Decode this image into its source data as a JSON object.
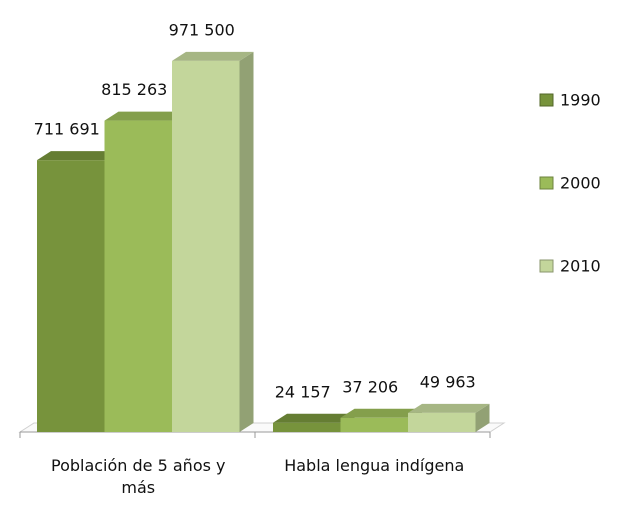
{
  "chart_data": {
    "type": "bar3d",
    "categories": [
      "Población de 5 años y más",
      "Habla lengua indígena"
    ],
    "series": [
      {
        "name": "1990",
        "color": "#77933c",
        "values": [
          711691,
          24157
        ],
        "value_labels": [
          "711 691",
          "24 157"
        ]
      },
      {
        "name": "2000",
        "color": "#9bbb59",
        "values": [
          815263,
          37206
        ],
        "value_labels": [
          "815 263",
          "37 206"
        ]
      },
      {
        "name": "2010",
        "color": "#c3d69b",
        "values": [
          971500,
          49963
        ],
        "value_labels": [
          "971 500",
          "49 963"
        ]
      }
    ],
    "ylim": [
      0,
      1000000
    ],
    "legend": "right"
  }
}
